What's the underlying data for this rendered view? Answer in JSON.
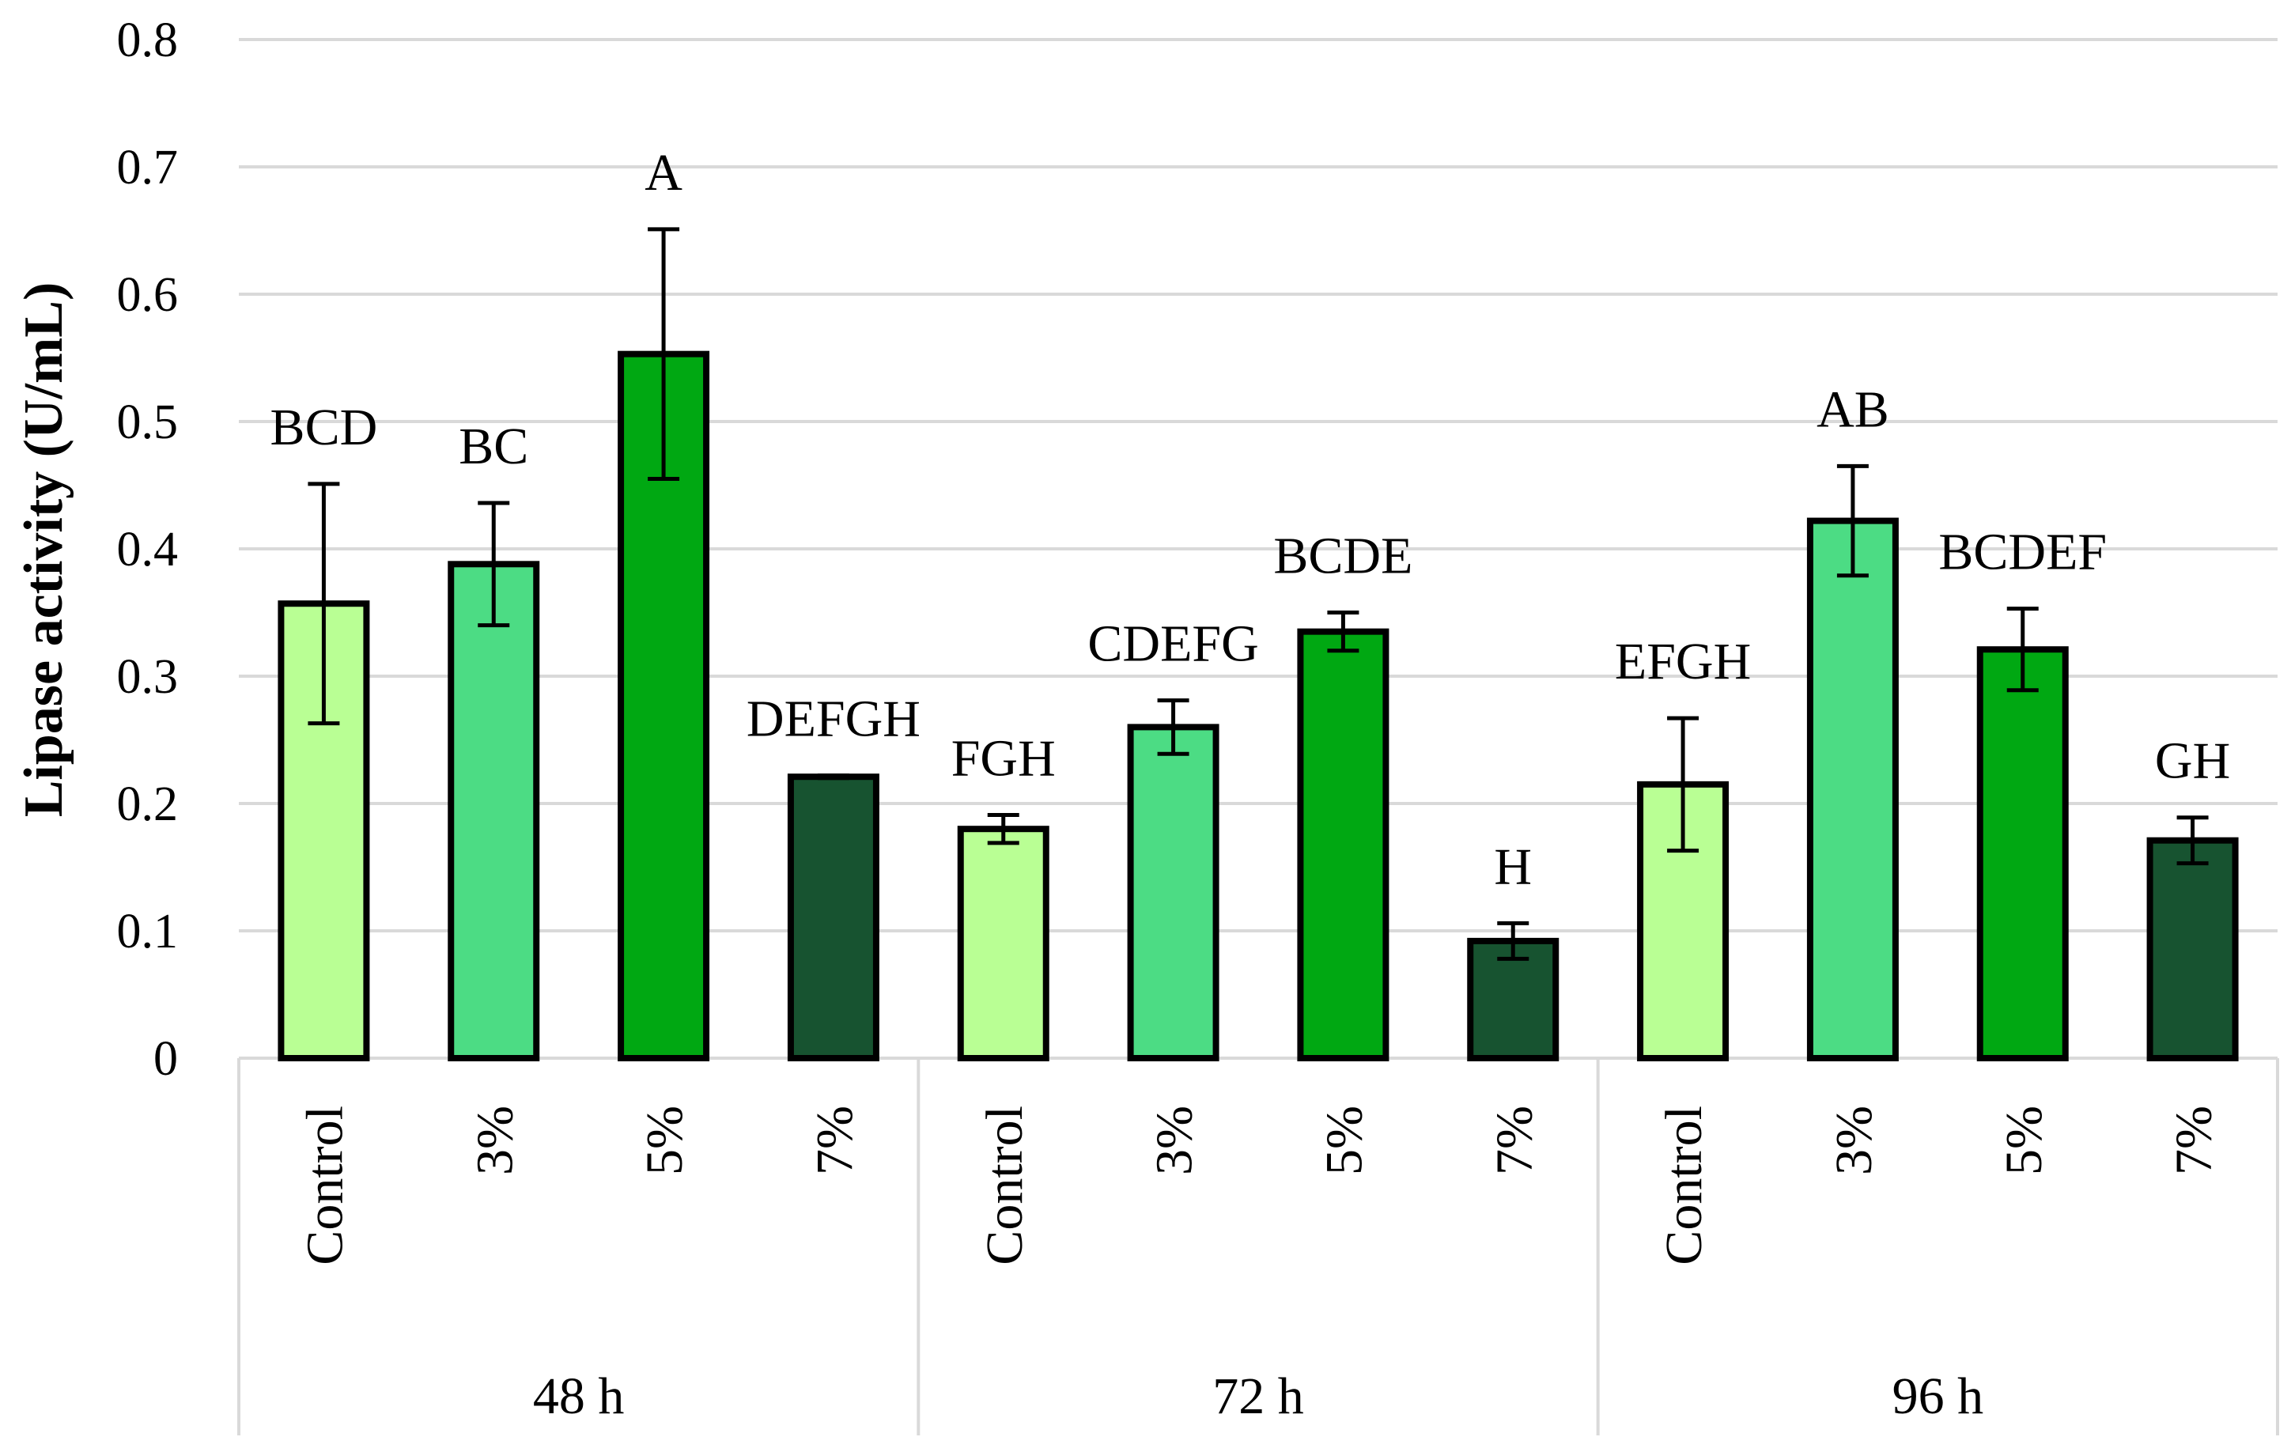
{
  "chart_data": {
    "type": "bar",
    "title": "",
    "xlabel": "",
    "ylabel": "Lipase activity (U/mL)",
    "ylim": [
      0,
      0.8
    ],
    "yticks": [
      0,
      0.1,
      0.2,
      0.3,
      0.4,
      0.5,
      0.6,
      0.7,
      0.8
    ],
    "ytick_labels": [
      "0",
      "0.1",
      "0.2",
      "0.3",
      "0.4",
      "0.5",
      "0.6",
      "0.7",
      "0.8"
    ],
    "grid": true,
    "legend": "none",
    "colors": {
      "Control": "#b9ff94",
      "3%": "#4cdc84",
      "5%": "#00a812",
      "7%": "#175330"
    },
    "groups": [
      {
        "label": "48 h",
        "bars": [
          {
            "category": "Control",
            "value": 0.357,
            "error": 0.094,
            "letters": "BCD"
          },
          {
            "category": "3%",
            "value": 0.388,
            "error": 0.048,
            "letters": "BC"
          },
          {
            "category": "5%",
            "value": 0.553,
            "error": 0.098,
            "letters": "A"
          },
          {
            "category": "7%",
            "value": 0.221,
            "error": 0.001,
            "letters": "DEFGH"
          }
        ]
      },
      {
        "label": "72 h",
        "bars": [
          {
            "category": "Control",
            "value": 0.18,
            "error": 0.011,
            "letters": "FGH"
          },
          {
            "category": "3%",
            "value": 0.26,
            "error": 0.021,
            "letters": "CDEFG"
          },
          {
            "category": "5%",
            "value": 0.335,
            "error": 0.015,
            "letters": "BCDE"
          },
          {
            "category": "7%",
            "value": 0.092,
            "error": 0.014,
            "letters": "H"
          }
        ]
      },
      {
        "label": "96 h",
        "bars": [
          {
            "category": "Control",
            "value": 0.215,
            "error": 0.052,
            "letters": "EFGH"
          },
          {
            "category": "3%",
            "value": 0.422,
            "error": 0.043,
            "letters": "AB"
          },
          {
            "category": "5%",
            "value": 0.321,
            "error": 0.032,
            "letters": "BCDEF"
          },
          {
            "category": "7%",
            "value": 0.171,
            "error": 0.018,
            "letters": "GH"
          }
        ]
      }
    ]
  }
}
